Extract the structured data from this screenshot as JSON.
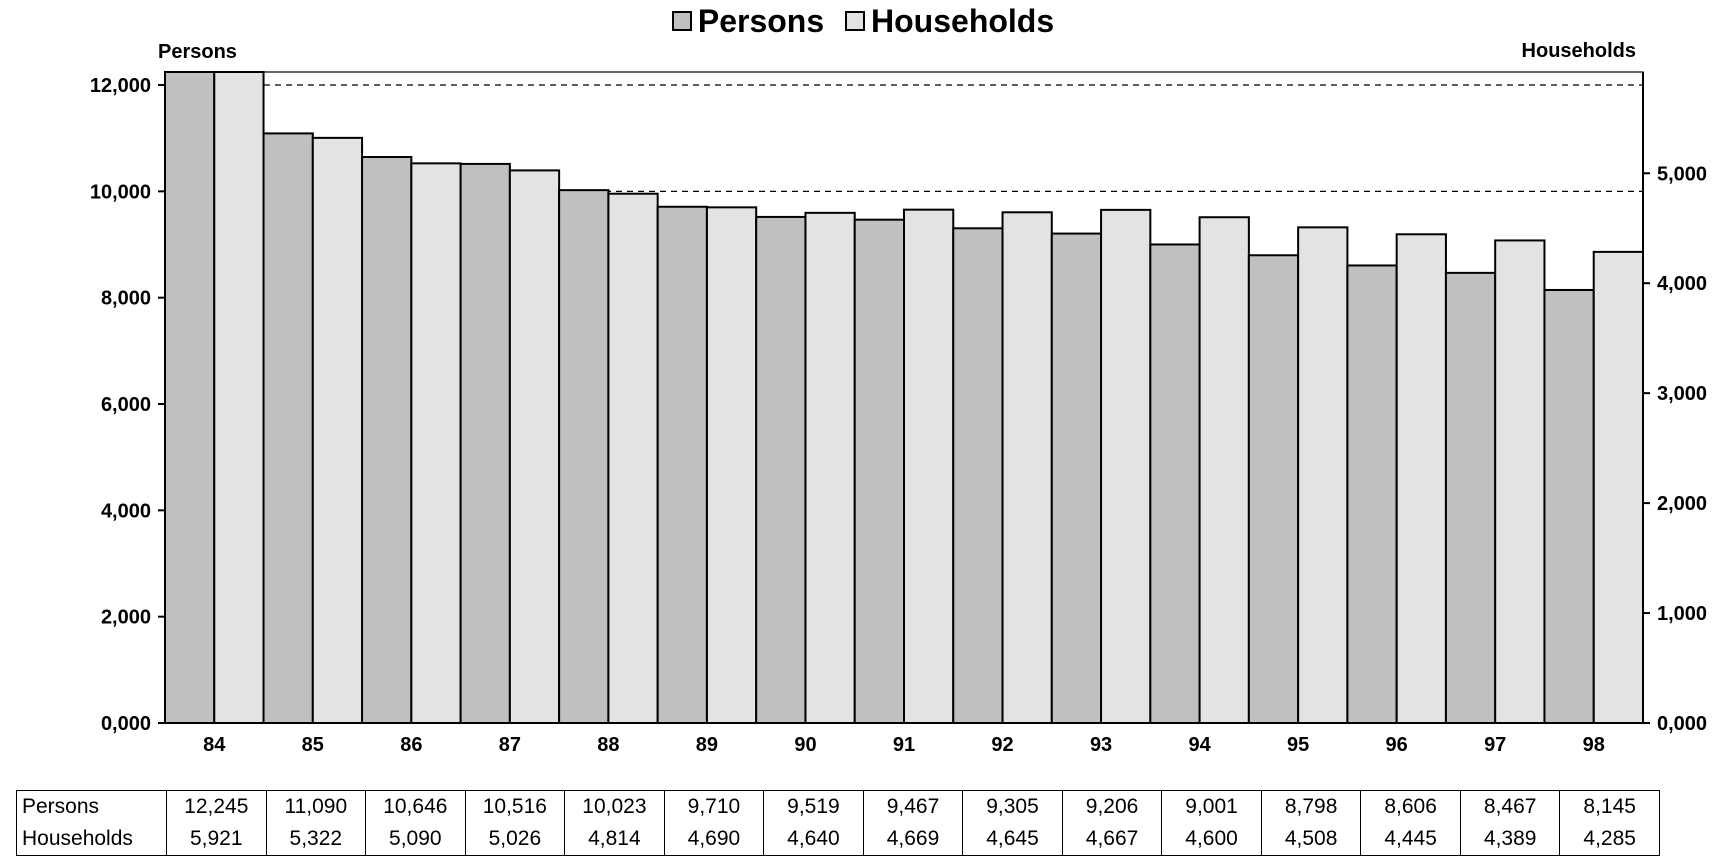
{
  "chart_data": {
    "type": "bar",
    "title": "",
    "legend": [
      "Persons",
      "Households"
    ],
    "legend_position": "top-center",
    "categories": [
      "84",
      "85",
      "86",
      "87",
      "88",
      "89",
      "90",
      "91",
      "92",
      "93",
      "94",
      "95",
      "96",
      "97",
      "98"
    ],
    "series": [
      {
        "name": "Persons",
        "axis": "left",
        "color": "#c0c0c0",
        "values": [
          12245,
          11090,
          10646,
          10516,
          10023,
          9710,
          9519,
          9467,
          9305,
          9206,
          9001,
          8798,
          8606,
          8467,
          8145
        ]
      },
      {
        "name": "Households",
        "axis": "right",
        "color": "#e3e3e3",
        "values": [
          5921,
          5322,
          5090,
          5026,
          4814,
          4690,
          4640,
          4669,
          4645,
          4667,
          4600,
          4508,
          4445,
          4389,
          4285
        ]
      }
    ],
    "y_left": {
      "label": "Persons",
      "ticks": [
        "0,000",
        "2,000",
        "4,000",
        "6,000",
        "8,000",
        "10,000",
        "12,000"
      ],
      "range": [
        0,
        12245
      ]
    },
    "y_right": {
      "label": "Households",
      "ticks": [
        "0,000",
        "1,000",
        "2,000",
        "3,000",
        "4,000",
        "5,000"
      ],
      "range": [
        0,
        5921
      ]
    },
    "reference_lines": [
      {
        "axis": "left",
        "value": 12000,
        "style": "dashed"
      },
      {
        "axis": "left",
        "value": 10000,
        "style": "dashed"
      }
    ],
    "grid": false
  },
  "table": {
    "rows": [
      {
        "label": "Persons",
        "cells": [
          "12,245",
          "11,090",
          "10,646",
          "10,516",
          "10,023",
          "9,710",
          "9,519",
          "9,467",
          "9,305",
          "9,206",
          "9,001",
          "8,798",
          "8,606",
          "8,467",
          "8,145"
        ]
      },
      {
        "label": "Households",
        "cells": [
          "5,921",
          "5,322",
          "5,090",
          "5,026",
          "4,814",
          "4,690",
          "4,640",
          "4,669",
          "4,645",
          "4,667",
          "4,600",
          "4,508",
          "4,445",
          "4,389",
          "4,285"
        ]
      }
    ]
  }
}
